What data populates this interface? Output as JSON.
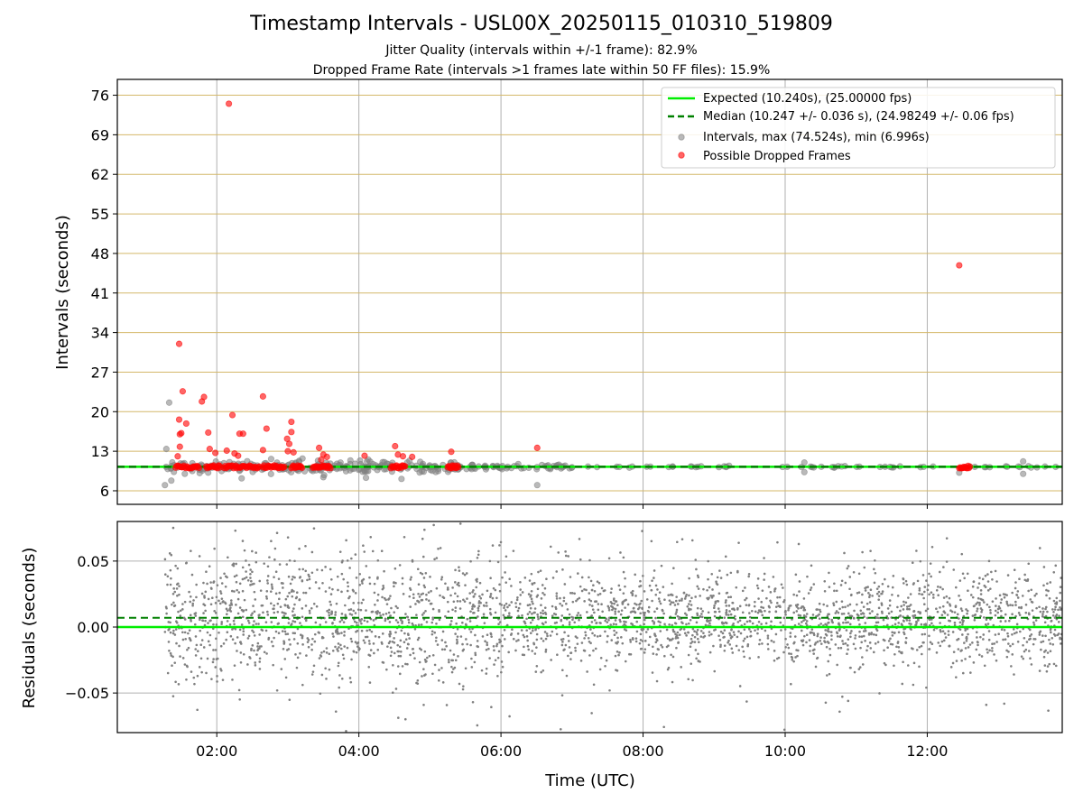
{
  "title": "Timestamp Intervals - USL00X_20250115_010310_519809",
  "subtitle_1": "Jitter Quality (intervals within +/-1 frame): 82.9%",
  "subtitle_2": "Dropped Frame Rate (intervals >1 frames late within 50 FF files): 15.9%",
  "colors": {
    "expected": "#00ee00",
    "median": "#008000",
    "intervals": "#808080",
    "dropped": "#ff0000",
    "hgrid": "#d4b86a",
    "vgrid": "#b0b0b0"
  },
  "chart_data": [
    {
      "type": "scatter",
      "ylabel": "Intervals (seconds)",
      "ylim": [
        3.6,
        78.8
      ],
      "yticks": [
        6,
        13,
        20,
        27,
        34,
        41,
        48,
        55,
        62,
        69,
        76
      ],
      "yticklabels": [
        "6",
        "13",
        "20",
        "27",
        "34",
        "41",
        "48",
        "55",
        "62",
        "69",
        "76"
      ],
      "xlim_hours": [
        0.6,
        13.9
      ],
      "grid": true,
      "legend_position": "upper-right",
      "legend": [
        {
          "key": "expected",
          "label": "Expected (10.240s), (25.00000 fps)"
        },
        {
          "key": "median",
          "label": "Median (10.247 +/- 0.036 s), (24.98249 +/- 0.06 fps)"
        },
        {
          "key": "intervals",
          "label": "Intervals, max (74.524s), min (6.996s)"
        },
        {
          "key": "dropped",
          "label": "Possible Dropped Frames"
        }
      ],
      "expected_interval": 10.24,
      "median_interval": 10.247,
      "interval_max": 74.524,
      "interval_min": 6.996,
      "intervals_outliers": [
        {
          "t": 1.27,
          "y": 7.0
        },
        {
          "t": 1.29,
          "y": 13.4
        },
        {
          "t": 1.33,
          "y": 21.6
        },
        {
          "t": 1.36,
          "y": 7.8
        },
        {
          "t": 1.55,
          "y": 9.0
        },
        {
          "t": 2.35,
          "y": 8.2
        },
        {
          "t": 3.5,
          "y": 8.4
        },
        {
          "t": 4.1,
          "y": 8.3
        },
        {
          "t": 4.6,
          "y": 8.1
        },
        {
          "t": 6.51,
          "y": 7.0
        },
        {
          "t": 10.27,
          "y": 9.3
        },
        {
          "t": 10.27,
          "y": 11.0
        },
        {
          "t": 12.45,
          "y": 9.2
        },
        {
          "t": 13.35,
          "y": 9.0
        },
        {
          "t": 13.35,
          "y": 11.2
        }
      ],
      "dropped_frames": [
        {
          "t": 1.47,
          "y": 32.0
        },
        {
          "t": 1.52,
          "y": 23.6
        },
        {
          "t": 1.47,
          "y": 18.6
        },
        {
          "t": 1.57,
          "y": 17.9
        },
        {
          "t": 1.48,
          "y": 16.0
        },
        {
          "t": 1.5,
          "y": 16.2
        },
        {
          "t": 1.48,
          "y": 13.8
        },
        {
          "t": 1.45,
          "y": 12.1
        },
        {
          "t": 1.82,
          "y": 22.6
        },
        {
          "t": 1.79,
          "y": 21.8
        },
        {
          "t": 1.88,
          "y": 16.3
        },
        {
          "t": 1.9,
          "y": 13.4
        },
        {
          "t": 1.98,
          "y": 12.7
        },
        {
          "t": 2.17,
          "y": 74.5
        },
        {
          "t": 2.22,
          "y": 19.4
        },
        {
          "t": 2.32,
          "y": 16.1
        },
        {
          "t": 2.37,
          "y": 16.1
        },
        {
          "t": 2.14,
          "y": 13.1
        },
        {
          "t": 2.25,
          "y": 12.6
        },
        {
          "t": 2.3,
          "y": 12.2
        },
        {
          "t": 2.65,
          "y": 22.7
        },
        {
          "t": 2.7,
          "y": 17.0
        },
        {
          "t": 2.65,
          "y": 13.2
        },
        {
          "t": 3.05,
          "y": 18.2
        },
        {
          "t": 3.05,
          "y": 16.4
        },
        {
          "t": 2.99,
          "y": 15.2
        },
        {
          "t": 3.02,
          "y": 14.3
        },
        {
          "t": 3.0,
          "y": 13.0
        },
        {
          "t": 3.08,
          "y": 12.8
        },
        {
          "t": 3.44,
          "y": 13.6
        },
        {
          "t": 3.5,
          "y": 12.4
        },
        {
          "t": 3.55,
          "y": 12.0
        },
        {
          "t": 3.47,
          "y": 11.5
        },
        {
          "t": 4.08,
          "y": 12.2
        },
        {
          "t": 4.51,
          "y": 13.9
        },
        {
          "t": 4.55,
          "y": 12.4
        },
        {
          "t": 4.62,
          "y": 12.1
        },
        {
          "t": 4.75,
          "y": 12.0
        },
        {
          "t": 5.3,
          "y": 12.9
        },
        {
          "t": 6.51,
          "y": 13.6
        },
        {
          "t": 12.45,
          "y": 45.9
        }
      ],
      "dropped_clusters_near_expected": [
        [
          1.42,
          1.75
        ],
        [
          1.85,
          2.05
        ],
        [
          2.1,
          2.6
        ],
        [
          2.65,
          2.95
        ],
        [
          3.05,
          3.2
        ],
        [
          3.35,
          3.6
        ],
        [
          4.45,
          4.65
        ],
        [
          5.25,
          5.4
        ],
        [
          12.45,
          12.6
        ]
      ]
    },
    {
      "type": "scatter",
      "xlabel": "Time (UTC)",
      "ylabel": "Residuals (seconds)",
      "ylim": [
        -0.08,
        0.08
      ],
      "yticks": [
        -0.05,
        0.0,
        0.05
      ],
      "yticklabels": [
        "−0.05",
        "0.00",
        "0.05"
      ],
      "xticks_hours": [
        2,
        4,
        6,
        8,
        10,
        12
      ],
      "xticklabels": [
        "02:00",
        "04:00",
        "06:00",
        "08:00",
        "10:00",
        "12:00"
      ],
      "xlim_hours": [
        0.6,
        13.9
      ],
      "expected_residual": 0.0,
      "median_residual": 0.007,
      "residual_time_span_hours": [
        1.27,
        13.9
      ],
      "residual_count": 3000
    }
  ]
}
